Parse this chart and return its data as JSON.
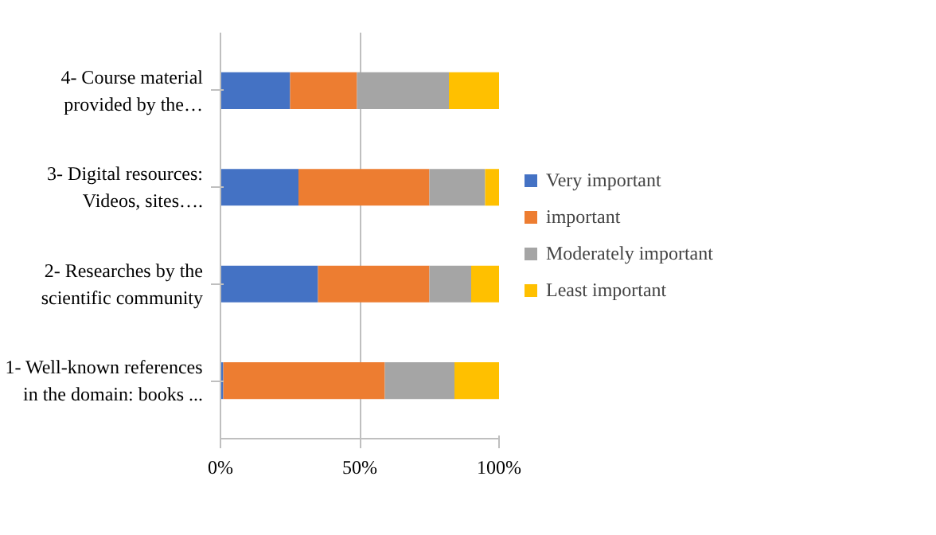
{
  "chart_data": {
    "type": "bar",
    "orientation": "horizontal",
    "stacked": true,
    "categories": [
      "4- Course material provided by the…",
      "3- Digital resources: Videos, sites….",
      "2- Researches by the scientific community",
      "1- Well-known references in the domain: books ..."
    ],
    "series": [
      {
        "name": "Very important",
        "color": "#4472c4",
        "values": [
          25,
          28,
          35,
          1
        ]
      },
      {
        "name": "important",
        "color": "#ed7d31",
        "values": [
          24,
          47,
          40,
          58
        ]
      },
      {
        "name": "Moderately important",
        "color": "#a5a5a5",
        "values": [
          33,
          20,
          15,
          25
        ]
      },
      {
        "name": "Least important",
        "color": "#ffc000",
        "values": [
          18,
          5,
          10,
          16
        ]
      }
    ],
    "xlim": [
      0,
      100
    ],
    "xticks": [
      {
        "value": 0,
        "label": "0%"
      },
      {
        "value": 50,
        "label": "50%"
      },
      {
        "value": 100,
        "label": "100%"
      }
    ],
    "grid": "x",
    "legend": "right"
  }
}
